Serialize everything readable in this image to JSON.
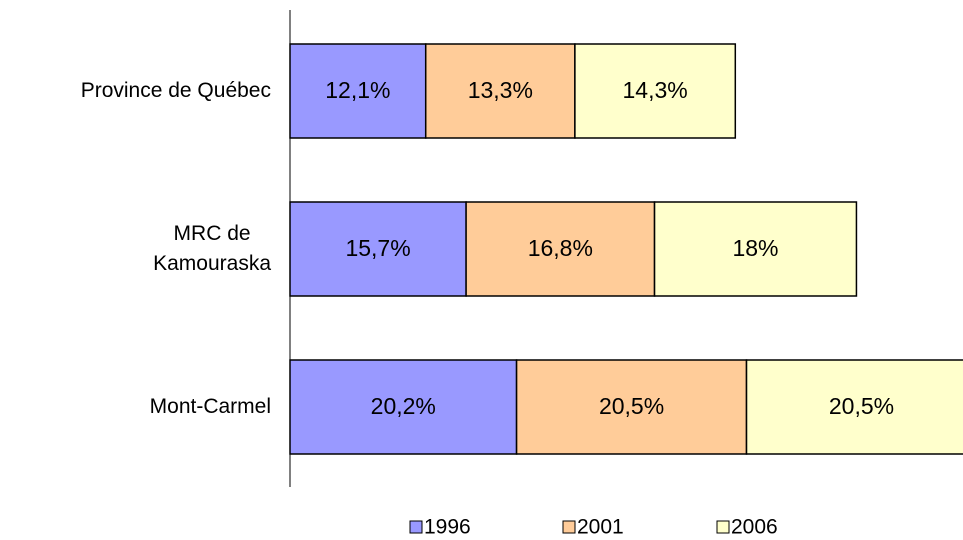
{
  "chart_data": {
    "type": "stacked-bar",
    "categories": [
      "Province de Québec",
      "MRC de\nKamouraska",
      "Mont-Carmel"
    ],
    "series": [
      {
        "name": "1996",
        "color": "#9999ff",
        "values": [
          12.1,
          15.7,
          20.2
        ],
        "value_labels": [
          "12,1%",
          "15,7%",
          "20,2%"
        ]
      },
      {
        "name": "2001",
        "color": "#ffcc99",
        "values": [
          13.3,
          16.8,
          20.5
        ],
        "value_labels": [
          "13,3%",
          "16,8%",
          "20,5%"
        ]
      },
      {
        "name": "2006",
        "color": "#ffffcc",
        "values": [
          14.3,
          18,
          20.5
        ],
        "value_labels": [
          "14,3%",
          "18%",
          "20,5%"
        ]
      }
    ],
    "xlim": [
      0,
      60
    ]
  }
}
